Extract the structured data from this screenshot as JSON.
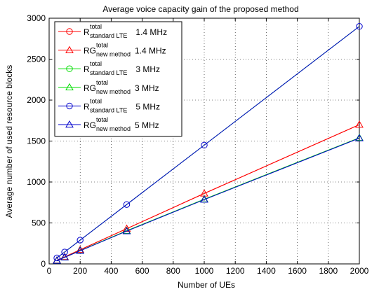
{
  "chart_data": {
    "type": "line",
    "title": "Average voice capacity gain of the proposed method",
    "xlabel": "Number of UEs",
    "ylabel": "Average number of used resource blocks",
    "xlim": [
      0,
      2000
    ],
    "ylim": [
      0,
      3000
    ],
    "xticks": [
      0,
      200,
      400,
      600,
      800,
      1000,
      1200,
      1400,
      1600,
      1800,
      2000
    ],
    "yticks": [
      0,
      500,
      1000,
      1500,
      2000,
      2500,
      3000
    ],
    "grid": true,
    "legend_position": "top-left",
    "x": [
      50,
      100,
      200,
      500,
      1000,
      2000
    ],
    "series": [
      {
        "name": "R total standard LTE 1.4 MHz",
        "legend": {
          "base": "R",
          "sup": "total",
          "sub": "standard LTE",
          "suffix": "1.4 MHz"
        },
        "color": "#ff0000",
        "marker": "circle",
        "draw_markers": false,
        "values": [
          43,
          86,
          172,
          430,
          860,
          1700
        ]
      },
      {
        "name": "RG total new method 1.4 MHz",
        "legend": {
          "base": "RG",
          "sup": "total",
          "sub": "new method",
          "suffix": "1.4 MHz"
        },
        "color": "#ff0000",
        "marker": "triangle",
        "draw_markers": true,
        "values": [
          43,
          86,
          172,
          430,
          860,
          1700
        ]
      },
      {
        "name": "R total standard LTE 3 MHz",
        "legend": {
          "base": "R",
          "sup": "total",
          "sub": "standard LTE",
          "suffix": "3 MHz"
        },
        "color": "#00dd00",
        "marker": "circle",
        "draw_markers": false,
        "values": [
          73,
          145,
          290,
          725,
          1450,
          2900
        ]
      },
      {
        "name": "RG total new method 3 MHz",
        "legend": {
          "base": "RG",
          "sup": "total",
          "sub": "new method",
          "suffix": "3 MHz"
        },
        "color": "#00dd00",
        "marker": "triangle",
        "draw_markers": true,
        "values": [
          40,
          80,
          162,
          405,
          790,
          1540
        ]
      },
      {
        "name": "R total standard LTE 5 MHz",
        "legend": {
          "base": "R",
          "sup": "total",
          "sub": "standard LTE",
          "suffix": "5 MHz"
        },
        "color": "#0000cc",
        "marker": "circle",
        "draw_markers": true,
        "values": [
          73,
          145,
          290,
          725,
          1450,
          2900
        ]
      },
      {
        "name": "RG total new method 5 MHz",
        "legend": {
          "base": "RG",
          "sup": "total",
          "sub": "new method",
          "suffix": "5 MHz"
        },
        "color": "#0000cc",
        "marker": "triangle",
        "draw_markers": true,
        "values": [
          40,
          80,
          160,
          400,
          785,
          1535
        ]
      }
    ]
  }
}
